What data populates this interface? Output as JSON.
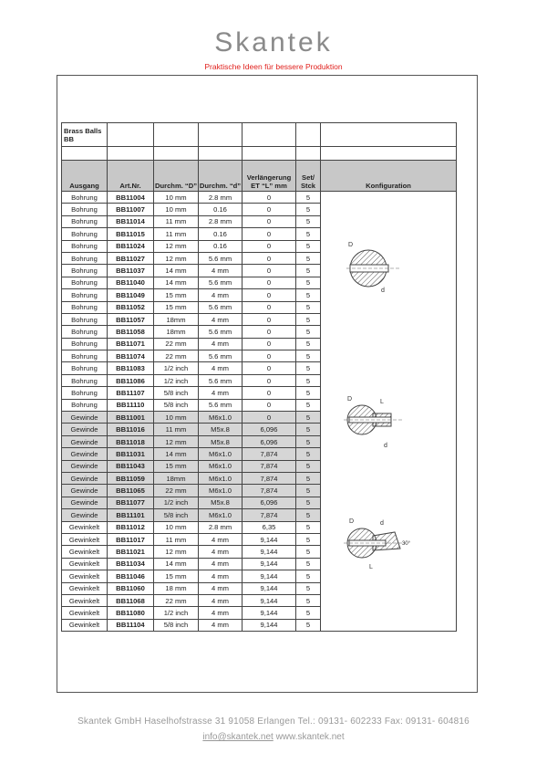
{
  "header": {
    "brand": "Skantek",
    "slogan": "Praktische Ideen für bessere Produktion"
  },
  "table": {
    "title": "Brass Balls BB",
    "columns": [
      "Ausgang",
      "Art.Nr.",
      "Durchm. “D”",
      "Durchm. “d”",
      "Verlängerung ET “L” mm",
      "Set/ Stck",
      "Konfiguration"
    ],
    "rows": [
      [
        "Bohrung",
        "BB11004",
        "10 mm",
        "2.8 mm",
        "0",
        "5"
      ],
      [
        "Bohrung",
        "BB11007",
        "10 mm",
        "0.16",
        "0",
        "5"
      ],
      [
        "Bohrung",
        "BB11014",
        "11 mm",
        "2.8 mm",
        "0",
        "5"
      ],
      [
        "Bohrung",
        "BB11015",
        "11 mm",
        "0.16",
        "0",
        "5"
      ],
      [
        "Bohrung",
        "BB11024",
        "12 mm",
        "0.16",
        "0",
        "5"
      ],
      [
        "Bohrung",
        "BB11027",
        "12 mm",
        "5.6 mm",
        "0",
        "5"
      ],
      [
        "Bohrung",
        "BB11037",
        "14 mm",
        "4 mm",
        "0",
        "5"
      ],
      [
        "Bohrung",
        "BB11040",
        "14 mm",
        "5.6 mm",
        "0",
        "5"
      ],
      [
        "Bohrung",
        "BB11049",
        "15 mm",
        "4 mm",
        "0",
        "5"
      ],
      [
        "Bohrung",
        "BB11052",
        "15 mm",
        "5.6 mm",
        "0",
        "5"
      ],
      [
        "Bohrung",
        "BB11057",
        "18mm",
        "4 mm",
        "0",
        "5"
      ],
      [
        "Bohrung",
        "BB11058",
        "18mm",
        "5.6 mm",
        "0",
        "5"
      ],
      [
        "Bohrung",
        "BB11071",
        "22 mm",
        "4 mm",
        "0",
        "5"
      ],
      [
        "Bohrung",
        "BB11074",
        "22 mm",
        "5.6 mm",
        "0",
        "5"
      ],
      [
        "Bohrung",
        "BB11083",
        "1/2 inch",
        "4 mm",
        "0",
        "5"
      ],
      [
        "Bohrung",
        "BB11086",
        "1/2 inch",
        "5.6 mm",
        "0",
        "5"
      ],
      [
        "Bohrung",
        "BB11107",
        "5/8 inch",
        "4 mm",
        "0",
        "5"
      ],
      [
        "Bohrung",
        "BB11110",
        "5/8 inch",
        "5.6 mm",
        "0",
        "5"
      ],
      [
        "Gewinde",
        "BB11001",
        "10 mm",
        "M6x1.0",
        "0",
        "5"
      ],
      [
        "Gewinde",
        "BB11016",
        "11 mm",
        "M5x.8",
        "6,096",
        "5"
      ],
      [
        "Gewinde",
        "BB11018",
        "12 mm",
        "M5x.8",
        "6,096",
        "5"
      ],
      [
        "Gewinde",
        "BB11031",
        "14 mm",
        "M6x1.0",
        "7,874",
        "5"
      ],
      [
        "Gewinde",
        "BB11043",
        "15 mm",
        "M6x1.0",
        "7,874",
        "5"
      ],
      [
        "Gewinde",
        "BB11059",
        "18mm",
        "M6x1.0",
        "7,874",
        "5"
      ],
      [
        "Gewinde",
        "BB11065",
        "22 mm",
        "M6x1.0",
        "7,874",
        "5"
      ],
      [
        "Gewinde",
        "BB11077",
        "1/2 inch",
        "M5x.8",
        "6,096",
        "5"
      ],
      [
        "Gewinde",
        "BB11101",
        "5/8 inch",
        "M6x1.0",
        "7,874",
        "5"
      ],
      [
        "Gewinkelt",
        "BB11012",
        "10 mm",
        "2.8 mm",
        "6,35",
        "5"
      ],
      [
        "Gewinkelt",
        "BB11017",
        "11 mm",
        "4 mm",
        "9,144",
        "5"
      ],
      [
        "Gewinkelt",
        "BB11021",
        "12 mm",
        "4 mm",
        "9,144",
        "5"
      ],
      [
        "Gewinkelt",
        "BB11034",
        "14 mm",
        "4 mm",
        "9,144",
        "5"
      ],
      [
        "Gewinkelt",
        "BB11046",
        "15 mm",
        "4 mm",
        "9,144",
        "5"
      ],
      [
        "Gewinkelt",
        "BB11060",
        "18 mm",
        "4 mm",
        "9,144",
        "5"
      ],
      [
        "Gewinkelt",
        "BB11068",
        "22 mm",
        "4 mm",
        "9,144",
        "5"
      ],
      [
        "Gewinkelt",
        "BB11080",
        "1/2 inch",
        "4 mm",
        "9,144",
        "5"
      ],
      [
        "Gewinkelt",
        "BB11104",
        "5/8 inch",
        "4 mm",
        "9,144",
        "5"
      ]
    ],
    "shaded_group": "Gewinde",
    "shade_color": "#d6d6d6"
  },
  "diagrams": {
    "label_D": "D",
    "label_d": "d",
    "label_L": "L",
    "angle": "30°"
  },
  "footer": {
    "address": "Skantek GmbH Haselhofstrasse 31 91058 Erlangen Tel.: 09131- 602233 Fax: 09131- 604816",
    "email": "info@skantek.net",
    "website": "www.skantek.net"
  }
}
